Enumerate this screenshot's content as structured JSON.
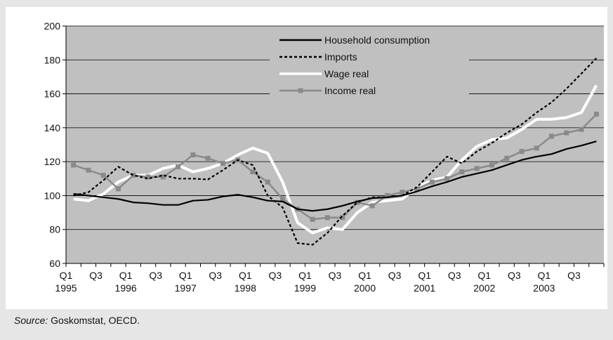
{
  "chart_data": {
    "type": "line",
    "title": "",
    "xlabel": "",
    "ylabel": "",
    "ylim": [
      60,
      200
    ],
    "yticks": [
      60,
      80,
      100,
      120,
      140,
      160,
      180,
      200
    ],
    "grid": true,
    "legend_position": "top-center",
    "x_tick_labels": [
      {
        "q": "Q1",
        "year": "1995"
      },
      {
        "q": "Q3",
        "year": ""
      },
      {
        "q": "Q1",
        "year": "1996"
      },
      {
        "q": "Q3",
        "year": ""
      },
      {
        "q": "Q1",
        "year": "1997"
      },
      {
        "q": "Q3",
        "year": ""
      },
      {
        "q": "Q1",
        "year": "1998"
      },
      {
        "q": "Q3",
        "year": ""
      },
      {
        "q": "Q1",
        "year": "1999"
      },
      {
        "q": "Q3",
        "year": ""
      },
      {
        "q": "Q1",
        "year": "2000"
      },
      {
        "q": "Q3",
        "year": ""
      },
      {
        "q": "Q1",
        "year": "2001"
      },
      {
        "q": "Q3",
        "year": ""
      },
      {
        "q": "Q1",
        "year": "2002"
      },
      {
        "q": "Q3",
        "year": ""
      },
      {
        "q": "Q1",
        "year": "2003"
      },
      {
        "q": "Q3",
        "year": ""
      }
    ],
    "series": [
      {
        "name": "Household consumption",
        "color": "#000000",
        "style": "solid",
        "values": [
          101,
          100,
          99,
          98,
          96,
          95.5,
          94.5,
          94.5,
          97,
          97.5,
          99.5,
          100.5,
          99,
          97,
          96.5,
          92,
          91,
          92,
          94,
          96.5,
          98.5,
          99,
          100,
          102.5,
          105.5,
          108,
          111,
          113,
          115,
          118,
          121,
          123,
          124.5,
          127.5,
          129.5,
          132
        ]
      },
      {
        "name": "Imports",
        "color": "#000000",
        "style": "dotted",
        "values": [
          100,
          102,
          109,
          117,
          112,
          110,
          112,
          110,
          110,
          109.5,
          115,
          121,
          118,
          100,
          93,
          72,
          71,
          78,
          88,
          96,
          99,
          99,
          100,
          105,
          114,
          123,
          119,
          126,
          131,
          137,
          142,
          149,
          155,
          163,
          172,
          181
        ]
      },
      {
        "name": "Wage real",
        "color": "#ffffff",
        "style": "solid",
        "values": [
          98,
          97,
          101,
          108,
          112,
          112,
          116,
          118,
          114,
          116,
          119,
          124,
          128,
          125,
          108,
          84,
          78,
          81,
          80,
          90,
          96,
          97,
          98,
          105,
          109,
          111,
          121,
          129,
          133,
          134,
          139,
          145,
          145,
          146,
          149,
          165
        ]
      },
      {
        "name": "Income real",
        "color": "#8a8a8a",
        "style": "solid-square-markers",
        "values": [
          118,
          115,
          112,
          104,
          112,
          111,
          111,
          117,
          124,
          122,
          119,
          121,
          114,
          108,
          98,
          92,
          86,
          87,
          87,
          96,
          94,
          100,
          102,
          104,
          108,
          110,
          114,
          116,
          118,
          122,
          126,
          128,
          135,
          137,
          139,
          148
        ]
      }
    ]
  },
  "source": {
    "label": "Source:",
    "text": "Goskomstat, OECD."
  }
}
